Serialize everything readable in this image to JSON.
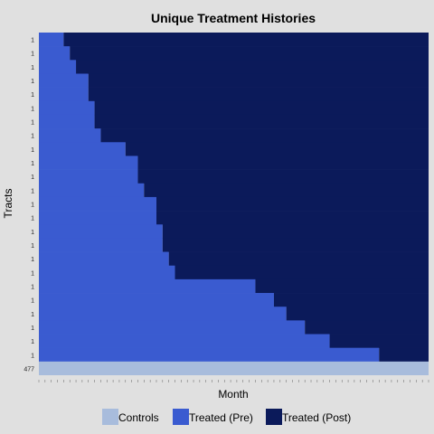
{
  "chart_data": {
    "type": "heatmap",
    "title": "Unique Treatment Histories",
    "xlabel": "Month",
    "ylabel": "Tracts",
    "row_labels": [
      "1",
      "1",
      "1",
      "1",
      "1",
      "1",
      "1",
      "1",
      "1",
      "1",
      "1",
      "1",
      "1",
      "1",
      "1",
      "1",
      "1",
      "1",
      "1",
      "1",
      "1",
      "1",
      "1",
      "1",
      "477"
    ],
    "n_periods": 63,
    "treatment_start": [
      4,
      5,
      6,
      8,
      8,
      9,
      9,
      10,
      14,
      16,
      16,
      17,
      19,
      19,
      20,
      20,
      21,
      22,
      35,
      38,
      40,
      43,
      47,
      55,
      null
    ],
    "colors": {
      "Controls": "#a8bcdc",
      "Treated (Pre)": "#3a5bd0",
      "Treated (Post)": "#0b1a5a"
    },
    "legend": {
      "position": "bottom",
      "items": [
        "Controls",
        "Treated (Pre)",
        "Treated (Post)"
      ]
    },
    "grid": false
  }
}
